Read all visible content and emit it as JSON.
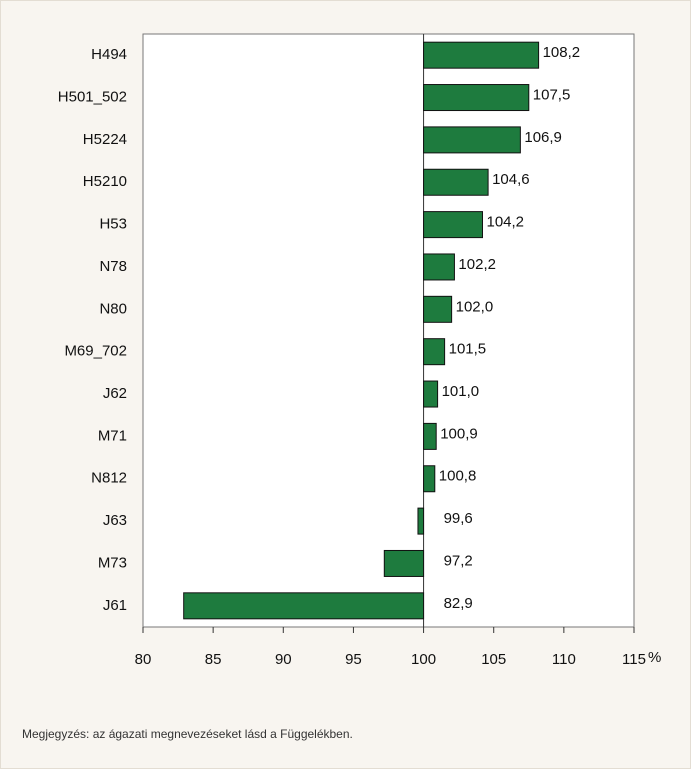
{
  "chart_data": {
    "type": "bar",
    "orientation": "horizontal",
    "categories": [
      "H494",
      "H501_502",
      "H5224",
      "H5210",
      "H53",
      "N78",
      "N80",
      "M69_702",
      "J62",
      "M71",
      "N812",
      "J63",
      "M73",
      "J61"
    ],
    "values": [
      108.2,
      107.5,
      106.9,
      104.6,
      104.2,
      102.2,
      102.0,
      101.5,
      101.0,
      100.9,
      100.8,
      99.6,
      97.2,
      82.9
    ],
    "value_labels": [
      "108,2",
      "107,5",
      "106,9",
      "104,6",
      "104,2",
      "102,2",
      "102,0",
      "101,5",
      "101,0",
      "100,9",
      "100,8",
      "99,6",
      "97,2",
      "82,9"
    ],
    "color": "#1e7b3e",
    "baseline": 100,
    "xlim": [
      80,
      115
    ],
    "xticks": [
      80,
      85,
      90,
      95,
      100,
      105,
      110,
      115
    ],
    "x_label": "%",
    "note": "Megjegyzés: az ágazati megnevezéseket lásd a Függelékben."
  }
}
